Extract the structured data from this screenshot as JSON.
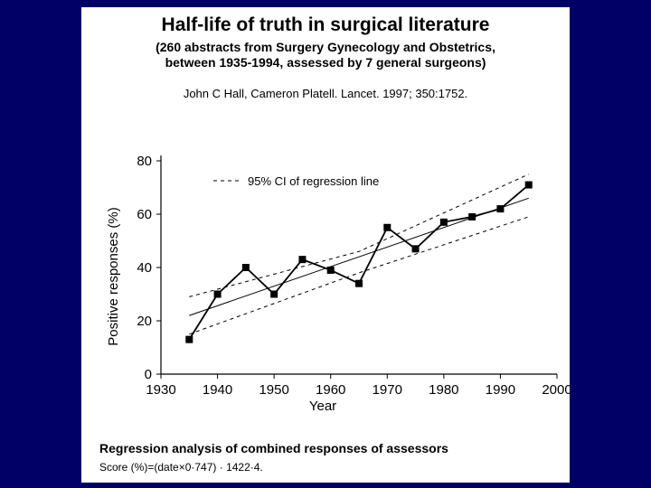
{
  "slide": {
    "title": "Half-life of truth in surgical literature",
    "subtitle_line1": "(260 abstracts from Surgery Gynecology and Obstetrics,",
    "subtitle_line2": "between 1935-1994, assessed by 7 general surgeons)",
    "citation": "John C Hall, Cameron Platell. Lancet. 1997; 350:1752.",
    "footer_title": "Regression analysis of combined responses of assessors",
    "footer_formula": "Score (%)=(date×0·747) · 1422·4."
  },
  "chart_data": {
    "type": "line",
    "title": "",
    "xlabel": "Year",
    "ylabel": "Positive responses (%)",
    "xlim": [
      1930,
      2000
    ],
    "ylim": [
      0,
      80
    ],
    "x_ticks": [
      "1930",
      "1940",
      "1950",
      "1960",
      "1970",
      "1980",
      "1990",
      "2000"
    ],
    "y_ticks": [
      "0",
      "20",
      "40",
      "60",
      "80"
    ],
    "grid": false,
    "legend": "top-left",
    "legend_entry": "95% CI of regression line",
    "series": [
      {
        "name": "",
        "style": "solid-with-square-markers",
        "x": [
          1935,
          1940,
          1945,
          1950,
          1955,
          1960,
          1965,
          1970,
          1975,
          1980,
          1985,
          1990,
          1995
        ],
        "y": [
          13,
          30,
          40,
          30,
          43,
          39,
          34,
          55,
          47,
          57,
          59,
          62,
          71
        ]
      },
      {
        "name": "",
        "style": "regression-line",
        "x": [
          1935,
          1995
        ],
        "y": [
          22,
          66
        ]
      },
      {
        "name": "",
        "style": "ci-upper-dashed",
        "x": [
          1935,
          1965,
          1995
        ],
        "y": [
          29,
          46,
          75
        ]
      },
      {
        "name": "",
        "style": "ci-lower-dashed",
        "x": [
          1935,
          1965,
          1995
        ],
        "y": [
          15,
          38,
          59
        ]
      }
    ]
  }
}
